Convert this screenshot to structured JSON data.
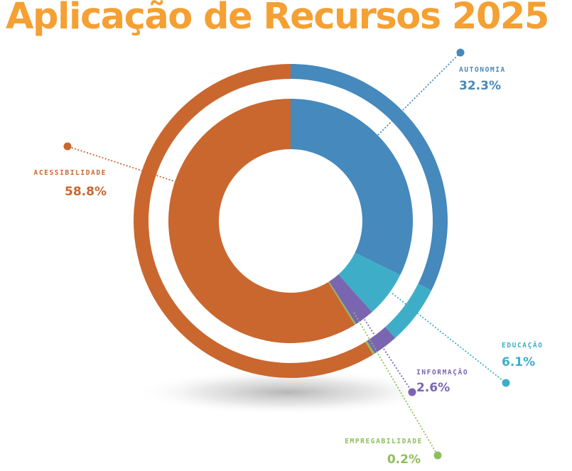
{
  "title": "Aplicação de Recursos 2025",
  "chart_data": {
    "type": "pie",
    "title": "Aplicação de Recursos 2025",
    "series": [
      {
        "name": "AUTONOMIA",
        "value": 32.3,
        "label": "32.3%",
        "color": "#4589bd"
      },
      {
        "name": "EDUCAÇÃO",
        "value": 6.1,
        "label": "6.1%",
        "color": "#3eaec8"
      },
      {
        "name": "INFORMAÇÃO",
        "value": 2.6,
        "label": "2.6%",
        "color": "#7a66b0"
      },
      {
        "name": "EMPREGABILIDADE",
        "value": 0.2,
        "label": "0.2%",
        "color": "#8fbe5a"
      },
      {
        "name": "ACESSIBILIDADE",
        "value": 58.8,
        "label": "58.8%",
        "color": "#c9672f"
      }
    ]
  }
}
